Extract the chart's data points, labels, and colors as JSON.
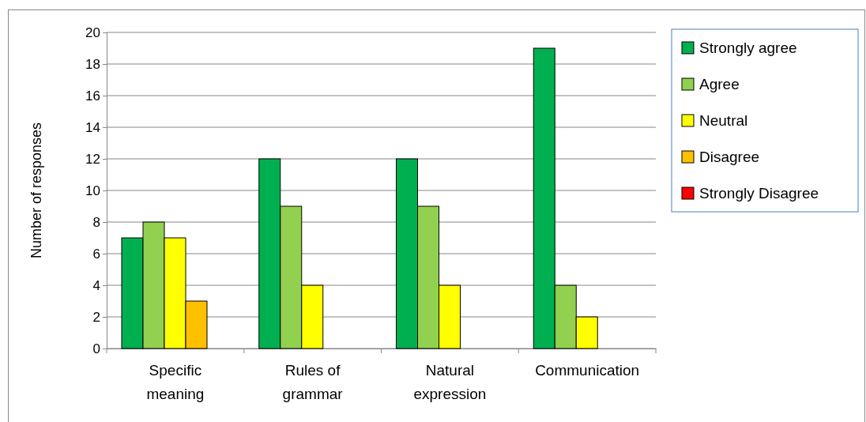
{
  "chart_data": {
    "type": "bar",
    "ylabel": "Number of responses",
    "categories": [
      "Specific meaning",
      "Rules of grammar",
      "Natural expression",
      "Communication"
    ],
    "series": [
      {
        "name": "Strongly agree",
        "color": "#00b050",
        "values": [
          7,
          12,
          12,
          19
        ]
      },
      {
        "name": "Agree",
        "color": "#92d050",
        "values": [
          8,
          9,
          9,
          4
        ]
      },
      {
        "name": "Neutral",
        "color": "#ffff00",
        "values": [
          7,
          4,
          4,
          2
        ]
      },
      {
        "name": "Disagree",
        "color": "#ffc000",
        "values": [
          3,
          0,
          0,
          0
        ]
      },
      {
        "name": "Strongly Disagree",
        "color": "#ff0000",
        "values": [
          0,
          0,
          0,
          0
        ]
      }
    ],
    "ylim": [
      0,
      20
    ],
    "yticks": [
      0,
      2,
      4,
      6,
      8,
      10,
      12,
      14,
      16,
      18,
      20
    ],
    "grid": "y",
    "legend": "right"
  }
}
